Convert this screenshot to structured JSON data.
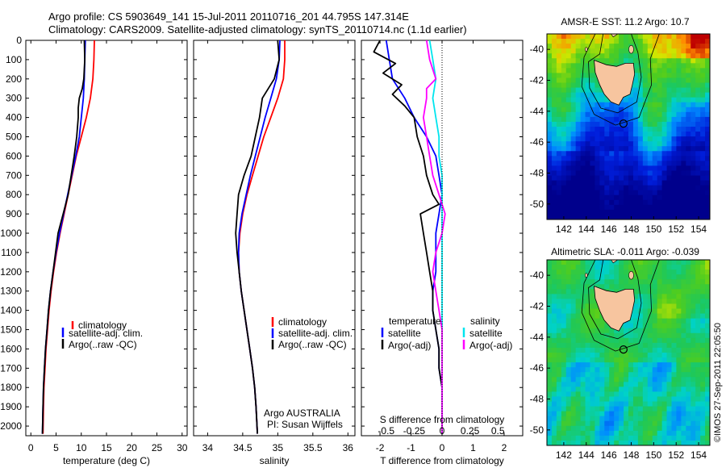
{
  "header": {
    "line1": "Argo profile: CS 5903649_141 15-Jul-2011 20110716_201 44.795S 147.314E",
    "line2": "Climatology: CARS2009. Satellite-adjusted climatology: synTS_20110714.nc (1.1d earlier)"
  },
  "timestamp": "©IMOS 27-Sep-2011 22:05:50",
  "colors": {
    "climatology": "#ff0000",
    "satellite": "#0000ff",
    "argo": "#000000",
    "sal_satellite": "#00e5ee",
    "sal_argo": "#ff00ff",
    "land": "#f7c59f"
  },
  "chart_data": [
    {
      "type": "line",
      "panel": "temperature",
      "xlabel": "temperature (deg C)",
      "xlim": [
        -1,
        31
      ],
      "xticks": [
        0,
        5,
        10,
        15,
        20,
        25,
        30
      ],
      "ylim": [
        0,
        2050
      ],
      "yreversed": true,
      "yticks": [
        0,
        100,
        200,
        300,
        400,
        500,
        600,
        700,
        800,
        900,
        1000,
        1100,
        1200,
        1300,
        1400,
        1500,
        1600,
        1700,
        1800,
        1900,
        2000
      ],
      "legend": {
        "entries": [
          "climatology",
          "satellite-adj. clim.",
          "Argo(..raw -QC)"
        ]
      },
      "series": [
        {
          "name": "climatology",
          "color": "#ff0000",
          "points": [
            [
              12.6,
              0
            ],
            [
              12.5,
              100
            ],
            [
              12.3,
              200
            ],
            [
              11.8,
              300
            ],
            [
              11.0,
              400
            ],
            [
              10.0,
              500
            ],
            [
              9.0,
              600
            ],
            [
              8.2,
              700
            ],
            [
              7.4,
              800
            ],
            [
              6.6,
              900
            ],
            [
              5.8,
              1000
            ],
            [
              5.1,
              1100
            ],
            [
              4.5,
              1200
            ],
            [
              4.0,
              1300
            ],
            [
              3.6,
              1400
            ],
            [
              3.3,
              1500
            ],
            [
              3.0,
              1600
            ],
            [
              2.8,
              1700
            ],
            [
              2.6,
              1800
            ],
            [
              2.5,
              1900
            ],
            [
              2.4,
              2040
            ]
          ]
        },
        {
          "name": "satellite-adj. clim.",
          "color": "#0000ff",
          "points": [
            [
              10.8,
              0
            ],
            [
              10.7,
              100
            ],
            [
              10.6,
              200
            ],
            [
              10.4,
              300
            ],
            [
              10.0,
              400
            ],
            [
              9.6,
              500
            ],
            [
              8.9,
              600
            ],
            [
              8.1,
              700
            ],
            [
              7.3,
              800
            ],
            [
              6.5,
              900
            ],
            [
              5.7,
              1000
            ],
            [
              5.0,
              1100
            ],
            [
              4.4,
              1200
            ],
            [
              3.9,
              1300
            ],
            [
              3.5,
              1400
            ],
            [
              3.2,
              1500
            ],
            [
              2.9,
              1600
            ],
            [
              2.7,
              1700
            ],
            [
              2.5,
              1800
            ],
            [
              2.4,
              1900
            ],
            [
              2.3,
              2040
            ]
          ]
        },
        {
          "name": "Argo(..raw -QC)",
          "color": "#000000",
          "points": [
            [
              10.6,
              0
            ],
            [
              10.7,
              100
            ],
            [
              10.5,
              200
            ],
            [
              10.2,
              250
            ],
            [
              9.6,
              300
            ],
            [
              9.4,
              350
            ],
            [
              9.4,
              400
            ],
            [
              9.1,
              500
            ],
            [
              8.6,
              600
            ],
            [
              8.0,
              700
            ],
            [
              7.4,
              800
            ],
            [
              6.4,
              900
            ],
            [
              5.4,
              1000
            ],
            [
              4.9,
              1100
            ],
            [
              4.4,
              1200
            ],
            [
              3.9,
              1300
            ],
            [
              3.5,
              1400
            ],
            [
              3.2,
              1500
            ],
            [
              2.9,
              1600
            ],
            [
              2.7,
              1700
            ],
            [
              2.5,
              1800
            ],
            [
              2.4,
              1900
            ],
            [
              2.3,
              2040
            ]
          ]
        }
      ]
    },
    {
      "type": "line",
      "panel": "salinity",
      "xlabel": "salinity",
      "xlim": [
        33.8,
        36.1
      ],
      "xticks": [
        34,
        34.5,
        35,
        35.5,
        36
      ],
      "ylim": [
        0,
        2050
      ],
      "yreversed": true,
      "legend": {
        "entries": [
          "climatology",
          "satellite-adj. clim.",
          "Argo(..raw -QC)"
        ]
      },
      "annotation": {
        "line1": "Argo AUSTRALIA",
        "line2": "PI: Susan Wijffels"
      },
      "series": [
        {
          "name": "climatology",
          "color": "#ff0000",
          "points": [
            [
              35.1,
              0
            ],
            [
              35.1,
              100
            ],
            [
              35.08,
              200
            ],
            [
              35.0,
              300
            ],
            [
              34.9,
              400
            ],
            [
              34.8,
              500
            ],
            [
              34.72,
              600
            ],
            [
              34.64,
              700
            ],
            [
              34.56,
              800
            ],
            [
              34.5,
              900
            ],
            [
              34.46,
              1000
            ],
            [
              34.44,
              1100
            ],
            [
              34.45,
              1200
            ],
            [
              34.48,
              1300
            ],
            [
              34.52,
              1400
            ],
            [
              34.56,
              1500
            ],
            [
              34.6,
              1600
            ],
            [
              34.64,
              1700
            ],
            [
              34.67,
              1800
            ],
            [
              34.69,
              1900
            ],
            [
              34.71,
              2040
            ]
          ]
        },
        {
          "name": "satellite-adj. clim.",
          "color": "#0000ff",
          "points": [
            [
              35.03,
              0
            ],
            [
              35.02,
              100
            ],
            [
              34.98,
              200
            ],
            [
              34.9,
              300
            ],
            [
              34.82,
              400
            ],
            [
              34.75,
              500
            ],
            [
              34.68,
              600
            ],
            [
              34.61,
              700
            ],
            [
              34.55,
              800
            ],
            [
              34.49,
              900
            ],
            [
              34.45,
              1000
            ],
            [
              34.44,
              1100
            ],
            [
              34.45,
              1200
            ],
            [
              34.48,
              1300
            ],
            [
              34.52,
              1400
            ],
            [
              34.56,
              1500
            ],
            [
              34.6,
              1600
            ],
            [
              34.64,
              1700
            ],
            [
              34.67,
              1800
            ],
            [
              34.69,
              1900
            ],
            [
              34.71,
              2040
            ]
          ]
        },
        {
          "name": "Argo(..raw -QC)",
          "color": "#000000",
          "points": [
            [
              35.0,
              0
            ],
            [
              35.02,
              100
            ],
            [
              34.95,
              200
            ],
            [
              34.78,
              300
            ],
            [
              34.74,
              400
            ],
            [
              34.68,
              500
            ],
            [
              34.62,
              600
            ],
            [
              34.52,
              700
            ],
            [
              34.44,
              800
            ],
            [
              34.42,
              900
            ],
            [
              34.4,
              1000
            ],
            [
              34.42,
              1100
            ],
            [
              34.45,
              1200
            ],
            [
              34.48,
              1300
            ],
            [
              34.52,
              1400
            ],
            [
              34.56,
              1500
            ],
            [
              34.6,
              1600
            ],
            [
              34.64,
              1700
            ],
            [
              34.67,
              1800
            ],
            [
              34.69,
              1900
            ],
            [
              34.71,
              2040
            ]
          ]
        }
      ]
    },
    {
      "type": "line",
      "panel": "difference",
      "xlabel": "T difference from climatology",
      "xlabel_top": "S difference from climatology",
      "xlim": [
        -2.6,
        2.6
      ],
      "xticks": [
        -2,
        -1,
        0,
        1,
        2
      ],
      "xticks_top": [
        "-0.5",
        "-0.25",
        "0",
        "0.25",
        "0.5"
      ],
      "xticks_top_pos": [
        -1.8,
        -0.9,
        0,
        0.9,
        1.8
      ],
      "ylim": [
        0,
        2050
      ],
      "yreversed": true,
      "legend": {
        "temperature_title": "temperature",
        "salinity_title": "salinity",
        "temperature_entries": [
          "satellite",
          "Argo(-adj)"
        ],
        "salinity_entries": [
          "satellite",
          "Argo(-adj)"
        ]
      },
      "series": [
        {
          "name": "satellite",
          "group": "temperature",
          "color": "#0000ff",
          "points": [
            [
              -1.8,
              0
            ],
            [
              -1.7,
              100
            ],
            [
              -1.6,
              200
            ],
            [
              -1.2,
              300
            ],
            [
              -0.9,
              400
            ],
            [
              -0.5,
              500
            ],
            [
              -0.2,
              600
            ],
            [
              -0.1,
              700
            ],
            [
              0.0,
              800
            ],
            [
              -0.1,
              900
            ],
            [
              -0.2,
              1000
            ],
            [
              -0.2,
              1100
            ],
            [
              -0.2,
              1200
            ],
            [
              -0.3,
              1300
            ],
            [
              -0.3,
              1400
            ],
            [
              -0.2,
              1500
            ],
            [
              -0.1,
              1600
            ],
            [
              -0.1,
              1700
            ],
            [
              0.0,
              1800
            ],
            [
              0.0,
              1900
            ],
            [
              0.0,
              2040
            ]
          ]
        },
        {
          "name": "Argo(-adj)",
          "group": "temperature",
          "color": "#000000",
          "points": [
            [
              -2.0,
              0
            ],
            [
              -2.2,
              60
            ],
            [
              -1.5,
              120
            ],
            [
              -1.9,
              170
            ],
            [
              -1.3,
              230
            ],
            [
              -1.6,
              280
            ],
            [
              -1.2,
              340
            ],
            [
              -0.9,
              400
            ],
            [
              -0.8,
              500
            ],
            [
              -0.6,
              600
            ],
            [
              -0.5,
              700
            ],
            [
              -0.3,
              800
            ],
            [
              -0.1,
              850
            ],
            [
              -0.7,
              900
            ],
            [
              -0.6,
              1000
            ],
            [
              -0.5,
              1100
            ],
            [
              -0.4,
              1200
            ],
            [
              -0.3,
              1300
            ],
            [
              -0.3,
              1400
            ],
            [
              -0.2,
              1500
            ],
            [
              -0.1,
              1600
            ],
            [
              -0.1,
              1700
            ],
            [
              0.0,
              1800
            ],
            [
              0.0,
              1900
            ],
            [
              0.0,
              2040
            ]
          ]
        },
        {
          "name": "satellite",
          "group": "salinity",
          "color": "#00e5ee",
          "points": [
            [
              -0.4,
              0
            ],
            [
              -0.3,
              100
            ],
            [
              -0.2,
              200
            ],
            [
              -0.3,
              300
            ],
            [
              -0.2,
              400
            ],
            [
              -0.1,
              500
            ],
            [
              -0.1,
              600
            ],
            [
              0.0,
              700
            ],
            [
              0.0,
              800
            ],
            [
              0.0,
              900
            ],
            [
              0.0,
              1000
            ],
            [
              0.0,
              1200
            ],
            [
              0.0,
              1400
            ],
            [
              0.0,
              1600
            ],
            [
              0.0,
              1800
            ],
            [
              0.0,
              2040
            ]
          ]
        },
        {
          "name": "Argo(-adj)",
          "group": "salinity",
          "color": "#ff00ff",
          "points": [
            [
              -0.5,
              0
            ],
            [
              -0.4,
              100
            ],
            [
              -0.2,
              200
            ],
            [
              -0.5,
              250
            ],
            [
              -0.5,
              300
            ],
            [
              -0.6,
              400
            ],
            [
              -0.5,
              500
            ],
            [
              -0.4,
              600
            ],
            [
              -0.3,
              700
            ],
            [
              -0.1,
              800
            ],
            [
              0.1,
              900
            ],
            [
              0.0,
              1000
            ],
            [
              -0.2,
              1100
            ],
            [
              -0.3,
              1200
            ],
            [
              -0.2,
              1300
            ],
            [
              -0.1,
              1400
            ],
            [
              0.0,
              1500
            ],
            [
              0.0,
              1600
            ],
            [
              0.0,
              1700
            ],
            [
              0.0,
              1800
            ],
            [
              0.0,
              2040
            ]
          ]
        }
      ]
    },
    {
      "type": "heatmap",
      "panel": "sst_map",
      "title": "AMSR-E SST: 11.2 Argo: 10.7",
      "xticks": [
        "142",
        "144",
        "146",
        "148",
        "150",
        "152",
        "154"
      ],
      "yticks": [
        "-40",
        "-42",
        "-44",
        "-46",
        "-48",
        "-50"
      ],
      "lonlim": [
        140.5,
        155
      ],
      "latlim": [
        -51,
        -39
      ],
      "float_position": {
        "lon": 147.314,
        "lat": -44.795
      }
    },
    {
      "type": "heatmap",
      "panel": "sla_map",
      "title": "Altimetric SLA: -0.011 Argo: -0.039",
      "xticks": [
        "142",
        "144",
        "146",
        "148",
        "150",
        "152",
        "154"
      ],
      "yticks": [
        "-40",
        "-42",
        "-44",
        "-46",
        "-48",
        "-50"
      ],
      "lonlim": [
        140.5,
        155
      ],
      "latlim": [
        -51,
        -39
      ],
      "float_position": {
        "lon": 147.314,
        "lat": -44.795
      }
    }
  ]
}
